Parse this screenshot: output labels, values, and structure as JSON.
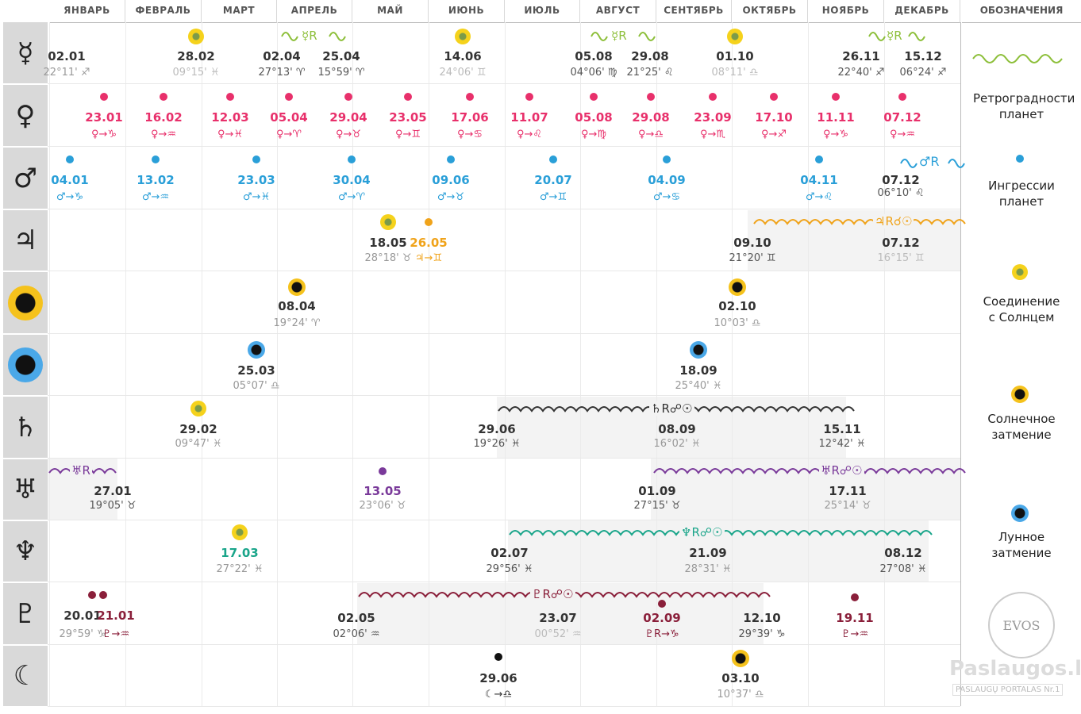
{
  "months": [
    "ЯНВАРЬ",
    "ФЕВРАЛЬ",
    "МАРТ",
    "АПРЕЛЬ",
    "МАЙ",
    "ИЮНЬ",
    "ИЮЛЬ",
    "АВГУСТ",
    "СЕНТЯБРЬ",
    "ОКТЯБРЬ",
    "НОЯБРЬ",
    "ДЕКАБРЬ"
  ],
  "legend_title": "ОБОЗНАЧЕНИЯ",
  "planets": [
    {
      "name": "mercury",
      "glyph": "☿"
    },
    {
      "name": "venus",
      "glyph": "♀"
    },
    {
      "name": "mars",
      "glyph": "♂"
    },
    {
      "name": "jupiter",
      "glyph": "♃"
    },
    {
      "name": "solar-eclipse",
      "glyph": ""
    },
    {
      "name": "lunar-eclipse",
      "glyph": ""
    },
    {
      "name": "saturn",
      "glyph": "♄"
    },
    {
      "name": "uranus",
      "glyph": "♅"
    },
    {
      "name": "neptune",
      "glyph": "♆"
    },
    {
      "name": "pluto",
      "glyph": "♇"
    },
    {
      "name": "lilith",
      "glyph": "☾"
    }
  ],
  "mercury": {
    "retro1": {
      "label": "☿R"
    },
    "retro2": {
      "label": "☿R"
    },
    "retro3": {
      "label": "☿R"
    },
    "items": [
      {
        "date": "02.01",
        "sub": "22°11' ♐"
      },
      {
        "date": "28.02",
        "sub": "09°15' ♓"
      },
      {
        "date": "02.04",
        "sub": "27°13' ♈"
      },
      {
        "date": "25.04",
        "sub": "15°59' ♈"
      },
      {
        "date": "14.06",
        "sub": "24°06' ♊"
      },
      {
        "date": "05.08",
        "sub": "04°06' ♍"
      },
      {
        "date": "29.08",
        "sub": "21°25' ♌"
      },
      {
        "date": "01.10",
        "sub": "08°11' ♎"
      },
      {
        "date": "26.11",
        "sub": "22°40' ♐"
      },
      {
        "date": "15.12",
        "sub": "06°24' ♐"
      }
    ]
  },
  "venus": {
    "items": [
      {
        "date": "23.01",
        "sub": "♀→♑"
      },
      {
        "date": "16.02",
        "sub": "♀→♒"
      },
      {
        "date": "12.03",
        "sub": "♀→♓"
      },
      {
        "date": "05.04",
        "sub": "♀→♈"
      },
      {
        "date": "29.04",
        "sub": "♀→♉"
      },
      {
        "date": "23.05",
        "sub": "♀→♊"
      },
      {
        "date": "17.06",
        "sub": "♀→♋"
      },
      {
        "date": "11.07",
        "sub": "♀→♌"
      },
      {
        "date": "05.08",
        "sub": "♀→♍"
      },
      {
        "date": "29.08",
        "sub": "♀→♎"
      },
      {
        "date": "23.09",
        "sub": "♀→♏"
      },
      {
        "date": "17.10",
        "sub": "♀→♐"
      },
      {
        "date": "11.11",
        "sub": "♀→♑"
      },
      {
        "date": "07.12",
        "sub": "♀→♒"
      }
    ]
  },
  "mars": {
    "retro": {
      "label": "♂R"
    },
    "items": [
      {
        "date": "04.01",
        "sub": "♂→♑"
      },
      {
        "date": "13.02",
        "sub": "♂→♒"
      },
      {
        "date": "23.03",
        "sub": "♂→♓"
      },
      {
        "date": "30.04",
        "sub": "♂→♈"
      },
      {
        "date": "09.06",
        "sub": "♂→♉"
      },
      {
        "date": "20.07",
        "sub": "♂→♊"
      },
      {
        "date": "04.09",
        "sub": "♂→♋"
      },
      {
        "date": "04.11",
        "sub": "♂→♌"
      },
      {
        "date": "07.12",
        "sub": "06°10' ♌"
      }
    ]
  },
  "jupiter": {
    "retro": {
      "label": "♃R☌☉"
    },
    "items": [
      {
        "date": "18.05",
        "sub": "28°18' ♉"
      },
      {
        "date": "26.05",
        "sub": "♃→♊"
      },
      {
        "date": "09.10",
        "sub": "21°20' ♊"
      },
      {
        "date": "07.12",
        "sub": "16°15' ♊"
      }
    ]
  },
  "solar_eclipse": {
    "items": [
      {
        "date": "08.04",
        "sub": "19°24' ♈"
      },
      {
        "date": "02.10",
        "sub": "10°03' ♎"
      }
    ]
  },
  "lunar_eclipse": {
    "items": [
      {
        "date": "25.03",
        "sub": "05°07' ♎"
      },
      {
        "date": "18.09",
        "sub": "25°40' ♓"
      }
    ]
  },
  "saturn": {
    "retro": {
      "label": "♄R☍☉"
    },
    "items": [
      {
        "date": "29.02",
        "sub": "09°47' ♓"
      },
      {
        "date": "29.06",
        "sub": "19°26' ♓"
      },
      {
        "date": "08.09",
        "sub": "16°02' ♓"
      },
      {
        "date": "15.11",
        "sub": "12°42' ♓"
      }
    ]
  },
  "uranus": {
    "retro1": {
      "label": "♅R"
    },
    "retro2": {
      "label": "♅R☍☉"
    },
    "items": [
      {
        "date": "27.01",
        "sub": "19°05' ♉"
      },
      {
        "date": "13.05",
        "sub": "23°06' ♉"
      },
      {
        "date": "01.09",
        "sub": "27°15' ♉"
      },
      {
        "date": "17.11",
        "sub": "25°14' ♉"
      }
    ]
  },
  "neptune": {
    "retro": {
      "label": "♆R☍☉"
    },
    "items": [
      {
        "date": "17.03",
        "sub": "27°22' ♓"
      },
      {
        "date": "02.07",
        "sub": "29°56' ♓"
      },
      {
        "date": "21.09",
        "sub": "28°31' ♓"
      },
      {
        "date": "08.12",
        "sub": "27°08' ♓"
      }
    ]
  },
  "pluto": {
    "retro": {
      "label": "♇R☍☉"
    },
    "items": [
      {
        "date": "20.01",
        "sub": "29°59' ♑"
      },
      {
        "date": "21.01",
        "sub": "♇→♒"
      },
      {
        "date": "02.05",
        "sub": "02°06' ♒"
      },
      {
        "date": "23.07",
        "sub": "00°52' ♒"
      },
      {
        "date": "02.09",
        "sub": "♇R→♑"
      },
      {
        "date": "12.10",
        "sub": "29°39' ♑"
      },
      {
        "date": "19.11",
        "sub": "♇→♒"
      }
    ]
  },
  "lilith": {
    "items": [
      {
        "date": "29.06",
        "sub": "☾→♎"
      },
      {
        "date": "03.10",
        "sub": "10°37' ♎"
      }
    ]
  },
  "legend": {
    "retro": "Ретроградности планет",
    "ingress": "Ингрессии планет",
    "conj": "Соединение с Солнцем",
    "solar": "Солнечное затмение",
    "lunar": "Лунное затмение"
  },
  "logo": "EVOS",
  "watermark": "Paslaugos.lt",
  "watermark_sub": "PASLAUGŲ PORTALAS Nr.1"
}
